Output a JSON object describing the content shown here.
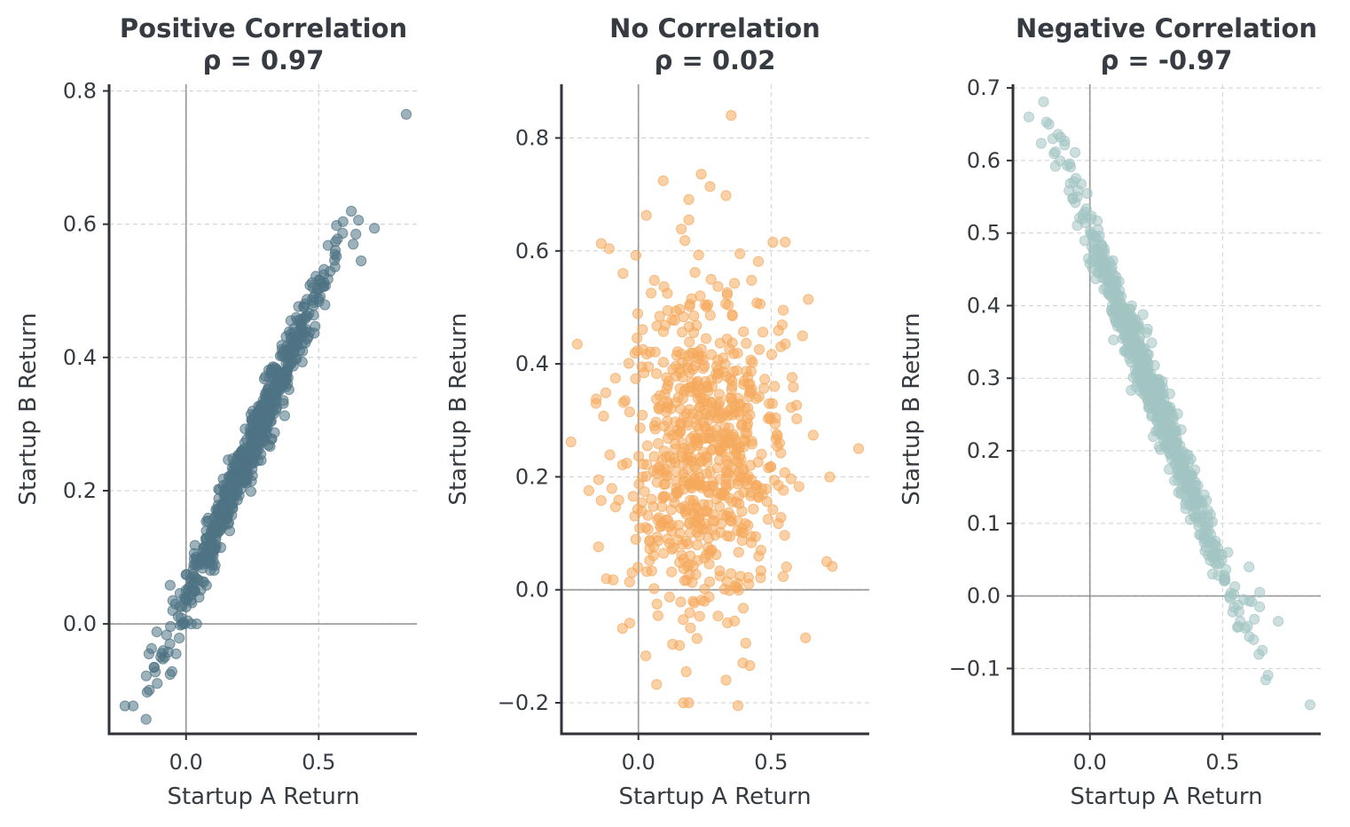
{
  "chart_data": [
    {
      "type": "scatter",
      "title": "Positive Correlation",
      "subtitle": "ρ = 0.97",
      "xlabel": "Startup A Return",
      "ylabel": "Startup B Return",
      "xlim": [
        -0.29,
        0.87
      ],
      "ylim": [
        -0.165,
        0.81
      ],
      "xticks": [
        0.0,
        0.5
      ],
      "xtick_labels": [
        "0.0",
        "0.5"
      ],
      "yticks": [
        0.0,
        0.2,
        0.4,
        0.6,
        0.8
      ],
      "ytick_labels": [
        "0.0",
        "0.2",
        "0.4",
        "0.6",
        "0.8"
      ],
      "grid": true,
      "color": "#4e7384",
      "correlation": 0.97,
      "points": [
        [
          -0.23,
          -0.123
        ],
        [
          -0.15,
          -0.078
        ],
        [
          -0.12,
          -0.065
        ],
        [
          -0.14,
          -0.045
        ],
        [
          -0.13,
          -0.037
        ],
        [
          -0.11,
          -0.012
        ],
        [
          -0.06,
          0.058
        ],
        [
          -0.05,
          0.02
        ],
        [
          -0.04,
          0.03
        ],
        [
          0.02,
          0.0
        ],
        [
          0.04,
          0.0
        ],
        [
          0.83,
          0.765
        ],
        [
          0.71,
          0.594
        ],
        [
          0.65,
          0.606
        ],
        [
          0.66,
          0.545
        ],
        [
          0.64,
          0.585
        ],
        [
          0.63,
          0.57
        ],
        [
          0.52,
          0.512
        ],
        [
          0.5,
          0.503
        ],
        [
          0.42,
          0.42
        ],
        [
          0.38,
          0.38
        ]
      ],
      "trend": {
        "slope": 0.92,
        "intercept": 0.04,
        "x_mean": 0.24,
        "x_sd": 0.15,
        "noise": 0.022,
        "n": 700
      }
    },
    {
      "type": "scatter",
      "title": "No Correlation",
      "subtitle": "ρ = 0.02",
      "xlabel": "Startup A Return",
      "ylabel": "Startup B Return",
      "xlim": [
        -0.29,
        0.87
      ],
      "ylim": [
        -0.255,
        0.895
      ],
      "xticks": [
        0.0,
        0.5
      ],
      "xtick_labels": [
        "0.0",
        "0.5"
      ],
      "yticks": [
        -0.2,
        0.0,
        0.2,
        0.4,
        0.6,
        0.8
      ],
      "ytick_labels": [
        "−0.2",
        "0.0",
        "0.2",
        "0.4",
        "0.6",
        "0.8"
      ],
      "grid": true,
      "color": "#f5a95c",
      "correlation": 0.02,
      "points": [
        [
          0.35,
          0.84
        ],
        [
          -0.23,
          0.435
        ],
        [
          -0.14,
          0.613
        ],
        [
          -0.11,
          0.604
        ],
        [
          0.03,
          0.663
        ],
        [
          0.27,
          0.714
        ],
        [
          0.33,
          0.698
        ],
        [
          0.19,
          0.691
        ],
        [
          0.19,
          0.655
        ],
        [
          0.83,
          0.25
        ],
        [
          0.71,
          0.05
        ],
        [
          0.63,
          -0.085
        ],
        [
          0.17,
          -0.2
        ],
        [
          0.19,
          -0.2
        ],
        [
          0.33,
          -0.16
        ],
        [
          0.42,
          -0.134
        ],
        [
          0.18,
          -0.145
        ],
        [
          -0.16,
          0.33
        ],
        [
          -0.15,
          0.195
        ],
        [
          0.06,
          0.548
        ]
      ],
      "trend": {
        "slope": 0.0,
        "intercept": 0.25,
        "x_mean": 0.25,
        "x_sd": 0.15,
        "noise": 0.15,
        "n": 700
      }
    },
    {
      "type": "scatter",
      "title": "Negative Correlation",
      "subtitle": "ρ = -0.97",
      "xlabel": "Startup A Return",
      "ylabel": "Startup B Return",
      "xlim": [
        -0.29,
        0.87
      ],
      "ylim": [
        -0.19,
        0.705
      ],
      "xticks": [
        0.0,
        0.5
      ],
      "xtick_labels": [
        "0.0",
        "0.5"
      ],
      "yticks": [
        -0.1,
        0.0,
        0.1,
        0.2,
        0.3,
        0.4,
        0.5,
        0.6,
        0.7
      ],
      "ytick_labels": [
        "−0.1",
        "0.0",
        "0.1",
        "0.2",
        "0.3",
        "0.4",
        "0.5",
        "0.6",
        "0.7"
      ],
      "grid": true,
      "color": "#a3c4c3",
      "correlation": -0.97,
      "points": [
        [
          -0.23,
          0.66
        ],
        [
          -0.12,
          0.636
        ],
        [
          -0.11,
          0.632
        ],
        [
          -0.14,
          0.63
        ],
        [
          -0.13,
          0.612
        ],
        [
          -0.13,
          0.592
        ],
        [
          0.83,
          -0.15
        ],
        [
          0.65,
          -0.075
        ],
        [
          0.71,
          -0.035
        ],
        [
          0.62,
          -0.032
        ],
        [
          0.64,
          -0.015
        ],
        [
          0.61,
          -0.008
        ],
        [
          0.58,
          -0.005
        ],
        [
          0.64,
          0.005
        ],
        [
          0.52,
          0.06
        ],
        [
          0.6,
          0.04
        ]
      ],
      "trend": {
        "slope": -0.93,
        "intercept": 0.5,
        "x_mean": 0.24,
        "x_sd": 0.15,
        "noise": 0.022,
        "n": 700
      }
    }
  ]
}
